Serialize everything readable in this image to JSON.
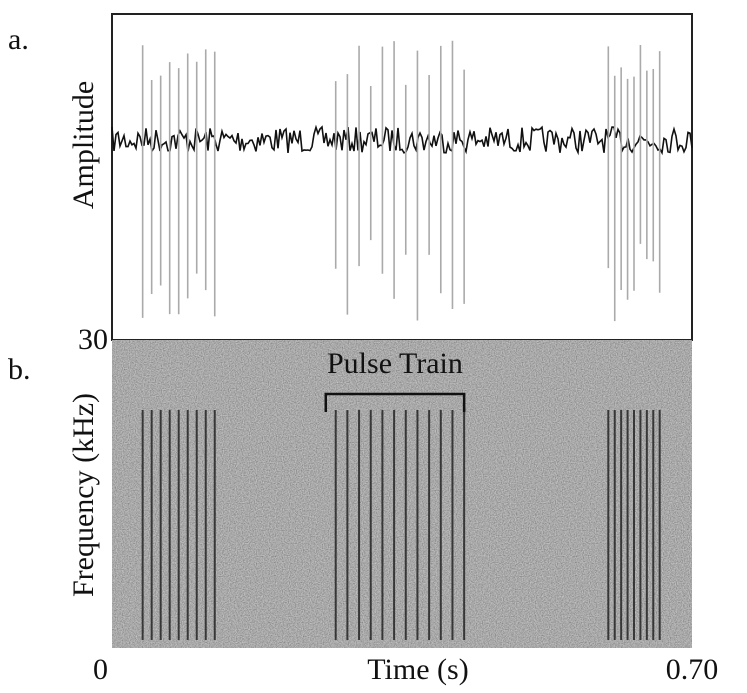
{
  "chart_data": [
    {
      "type": "waveform",
      "label": "a.",
      "ylabel": "Amplitude",
      "pulse_trains": [
        {
          "start": 0.037,
          "end": 0.124,
          "count": 9
        },
        {
          "start": 0.27,
          "end": 0.425,
          "count": 12
        },
        {
          "start": 0.599,
          "end": 0.661,
          "count": 9
        }
      ]
    },
    {
      "type": "spectrogram",
      "label": "b.",
      "ylabel": "Frequency (kHz)",
      "xlabel": "Time (s)",
      "xlim": [
        0,
        0.7
      ],
      "xticks": [
        0,
        {
          "value": 0.7,
          "label": "0.70"
        }
      ],
      "ylim": [
        0,
        30
      ],
      "yticks": [
        30
      ],
      "annotation": {
        "text": "Pulse Train",
        "x": [
          0.258,
          0.425
        ]
      }
    }
  ]
}
